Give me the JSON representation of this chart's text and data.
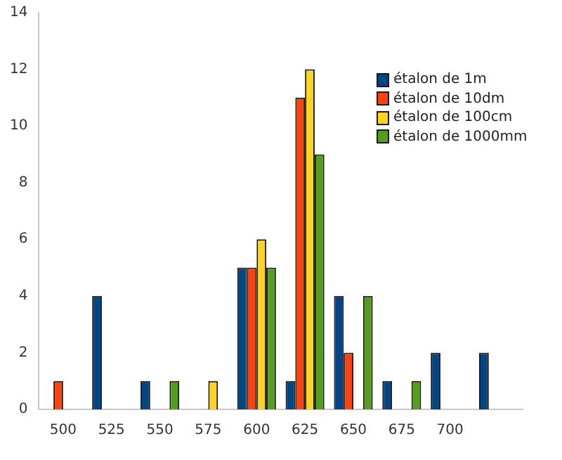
{
  "chart_data": {
    "type": "bar",
    "categories": [
      "500",
      "525",
      "550",
      "575",
      "600",
      "625",
      "650",
      "675",
      "700",
      null
    ],
    "series": [
      {
        "name": "étalon de 1m",
        "color": "#004586",
        "values": [
          0,
          4,
          1,
          0,
          5,
          1,
          4,
          1,
          2,
          2
        ]
      },
      {
        "name": "étalon de 10dm",
        "color": "#ff420e",
        "values": [
          1,
          0,
          0,
          0,
          5,
          11,
          2,
          0,
          0,
          0
        ]
      },
      {
        "name": "étalon de 100cm",
        "color": "#ffd320",
        "values": [
          0,
          0,
          0,
          1,
          6,
          12,
          0,
          0,
          0,
          0
        ]
      },
      {
        "name": "étalon de 1000mm",
        "color": "#579d1c",
        "values": [
          0,
          0,
          1,
          0,
          5,
          9,
          4,
          1,
          0,
          0
        ]
      }
    ],
    "ylim": [
      0,
      14
    ],
    "yticks": [
      0,
      2,
      4,
      6,
      8,
      10,
      12,
      14
    ],
    "grid": false,
    "legend": "top right"
  }
}
